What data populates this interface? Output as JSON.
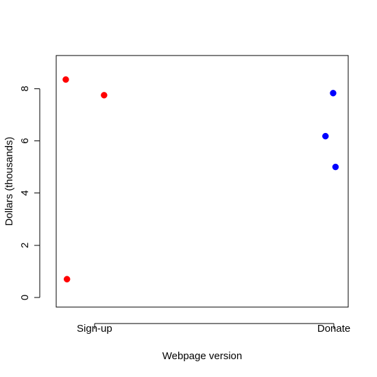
{
  "chart_data": {
    "type": "scatter",
    "title": "",
    "xlabel": "Webpage version",
    "ylabel": "Dollars (thousands)",
    "categories": [
      "Sign-up",
      "Donate"
    ],
    "xlim": [
      0.84,
      2.06
    ],
    "ylim": [
      -0.37,
      9.27
    ],
    "yticks": [
      0,
      2,
      4,
      6,
      8
    ],
    "series": [
      {
        "category": "Sign-up",
        "color": "#ff0000",
        "points": [
          {
            "x": 0.88,
            "y": 8.35
          },
          {
            "x": 1.04,
            "y": 7.75
          },
          {
            "x": 0.885,
            "y": 0.7
          }
        ]
      },
      {
        "category": "Donate",
        "color": "#0000ff",
        "points": [
          {
            "x": 1.997,
            "y": 7.83
          },
          {
            "x": 1.965,
            "y": 6.18
          },
          {
            "x": 2.007,
            "y": 5.0
          }
        ]
      }
    ],
    "grid": false,
    "legend": "none"
  }
}
